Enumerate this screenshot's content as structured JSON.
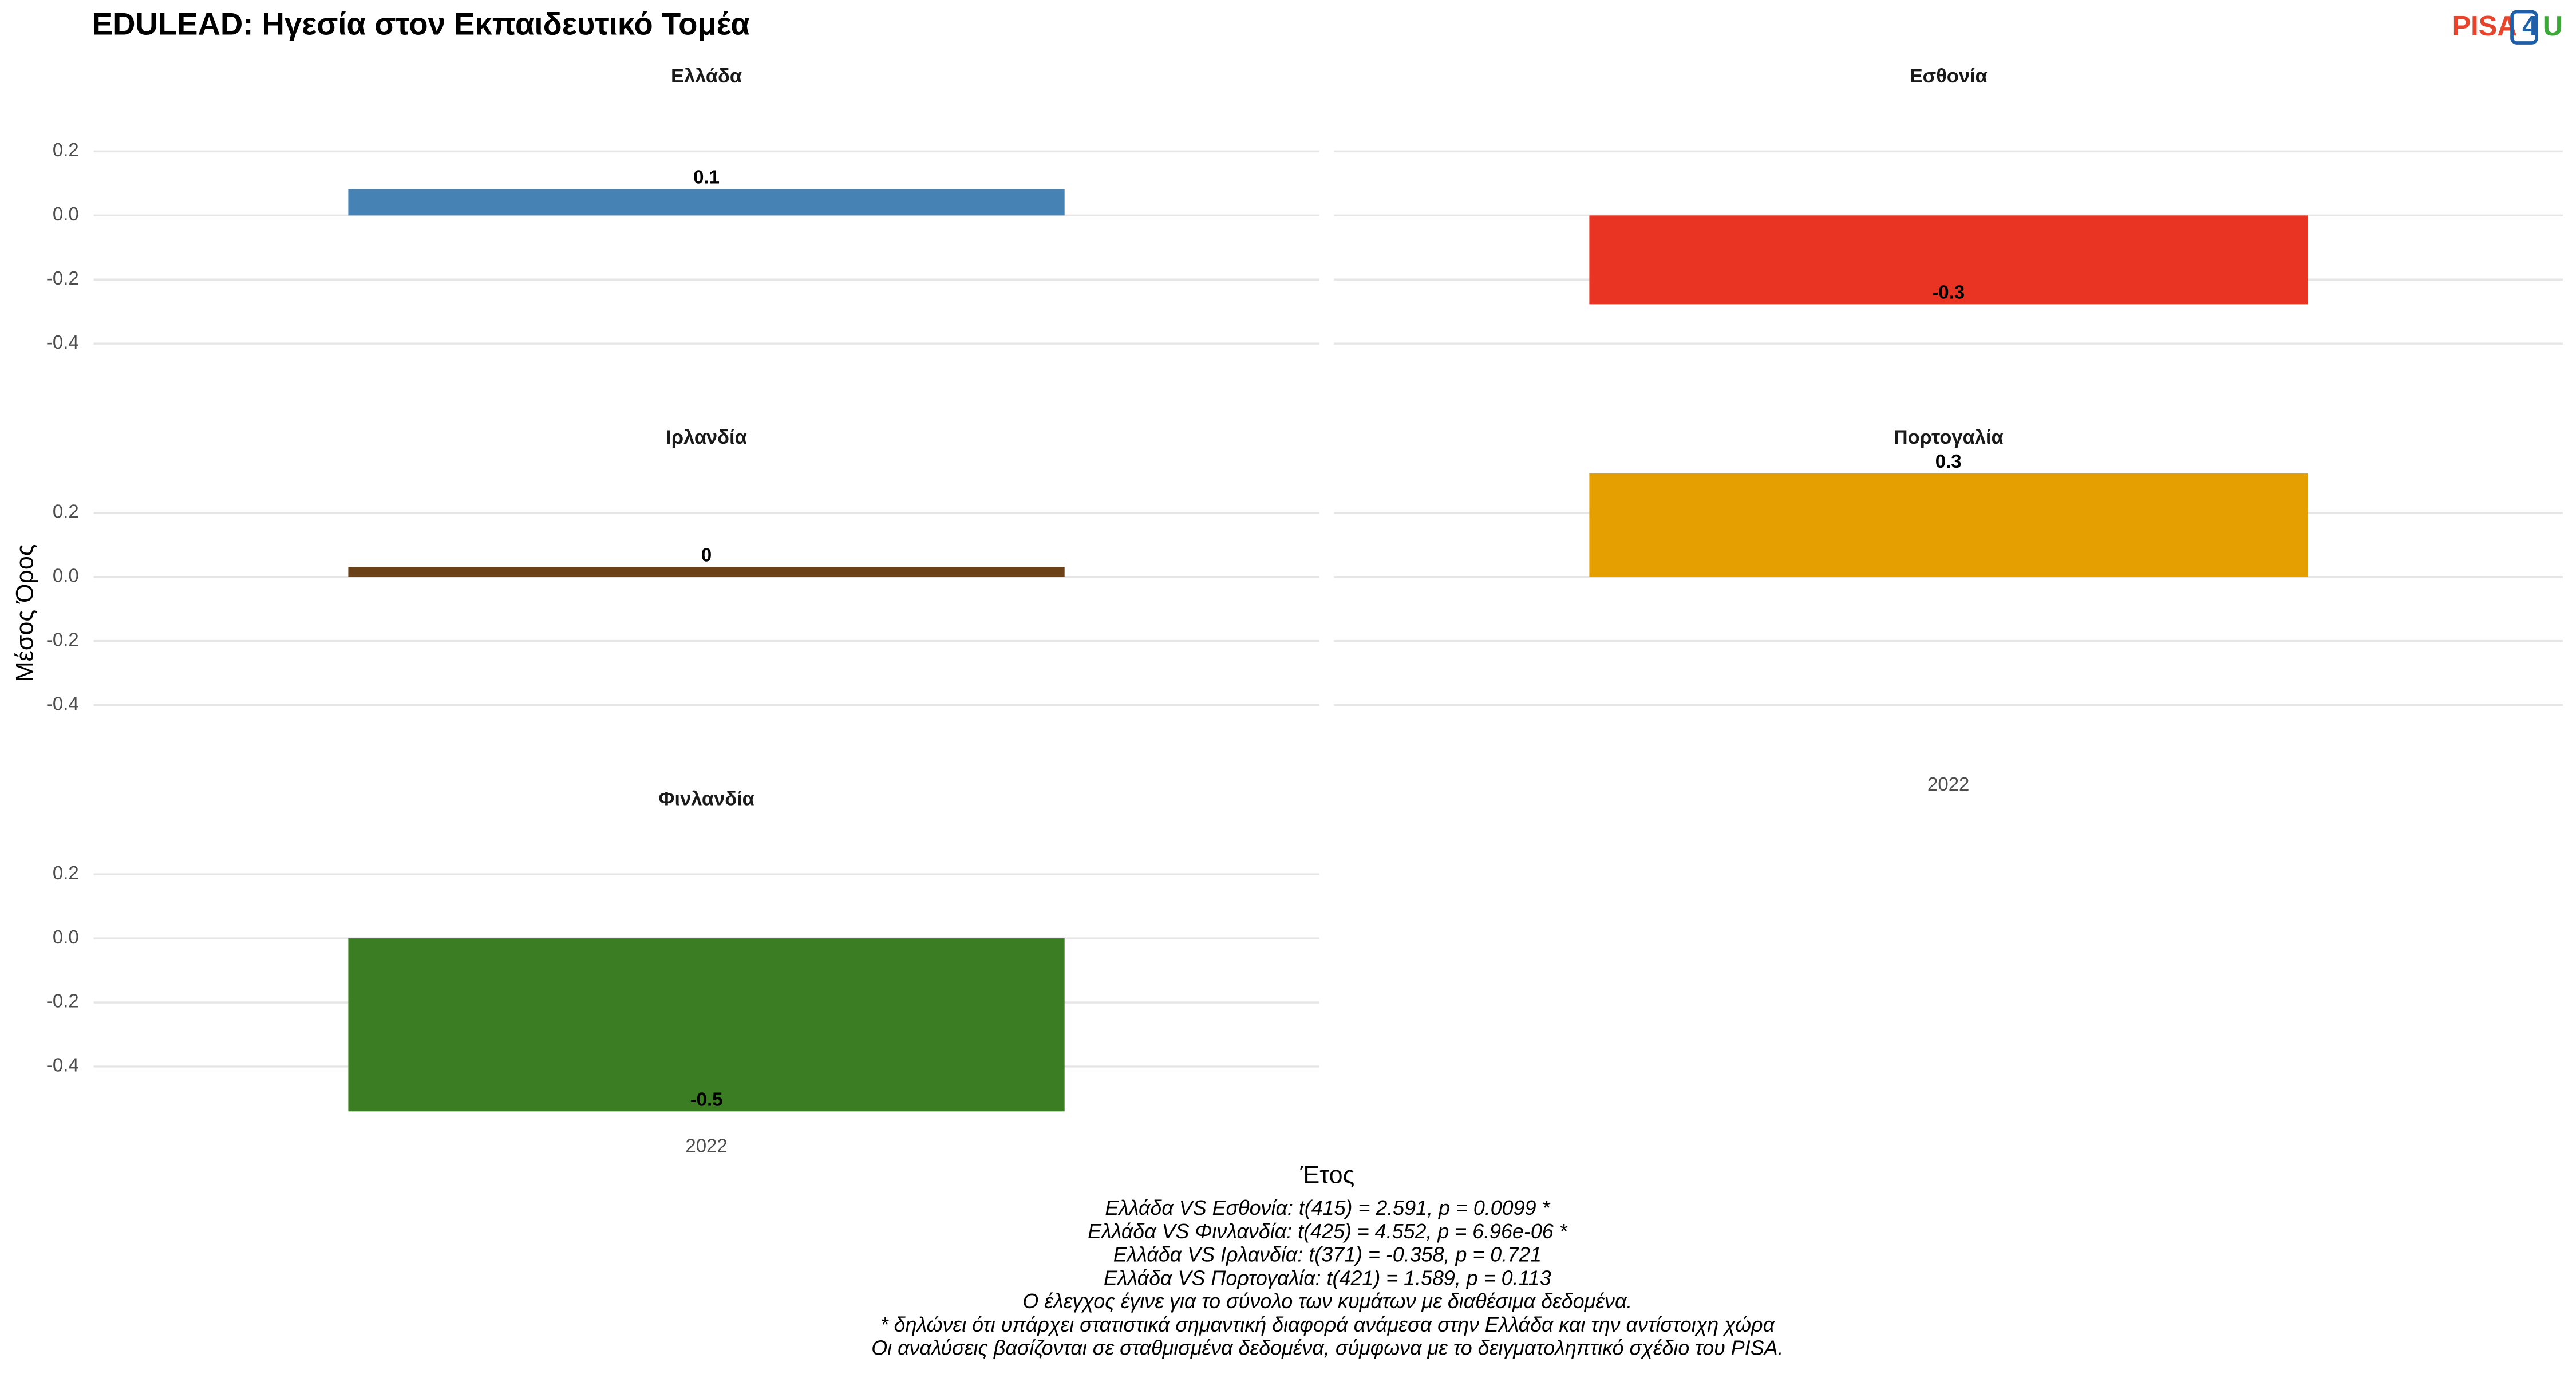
{
  "title": "EDULEAD: Ηγεσία στον Εκπαιδευτικό Τομέα",
  "logo": {
    "parts": [
      "PISA",
      "4",
      "U"
    ],
    "colors": [
      "#e8432b",
      "#1f5fa8",
      "#3aa935"
    ]
  },
  "y_label": "Μέσος Όρος",
  "x_label": "Έτος",
  "notes": [
    "Ελλάδα VS Εσθονία: t(415) = 2.591, p = 0.0099 *",
    "Ελλάδα VS Φινλανδία: t(425) = 4.552, p = 6.96e-06 *",
    "Ελλάδα VS Ιρλανδία: t(371) = -0.358, p = 0.721",
    "Ελλάδα VS Πορτογαλία: t(421) = 1.589, p = 0.113",
    "Ο έλεγχος έγινε για το σύνολο των κυμάτων με διαθέσιμα δεδομένα.",
    "* δηλώνει ότι υπάρχει στατιστικά σημαντική διαφορά ανάμεσα στην Ελλάδα και την αντίστοιχη χώρα",
    "Οι αναλύσεις βασίζονται σε σταθμισμένα δεδομένα, σύμφωνα με το δειγματοληπτικό σχέδιο του PISA."
  ],
  "chart_data": [
    {
      "type": "bar",
      "title": "Ελλάδα",
      "categories": [
        "2022"
      ],
      "values": [
        0.082
      ],
      "value_labels": [
        "0.1"
      ],
      "color": "#4682b4",
      "ylim": [
        -0.59,
        0.36
      ],
      "yticks": [
        -0.4,
        -0.2,
        {
          "value": 0,
          "label": "0.0"
        },
        0.2
      ],
      "grid": true
    },
    {
      "type": "bar",
      "title": "Εσθονία",
      "categories": [
        "2022"
      ],
      "values": [
        -0.277
      ],
      "value_labels": [
        "-0.3"
      ],
      "color": "#e93424",
      "ylim": [
        -0.59,
        0.36
      ],
      "yticks": [
        -0.4,
        -0.2,
        {
          "value": 0,
          "label": "0.0"
        },
        0.2
      ],
      "grid": true
    },
    {
      "type": "bar",
      "title": "Ιρλανδία",
      "categories": [
        "2022"
      ],
      "values": [
        0.031
      ],
      "value_labels": [
        "0"
      ],
      "color": "#6b4118",
      "ylim": [
        -0.59,
        0.36
      ],
      "yticks": [
        -0.4,
        -0.2,
        {
          "value": 0,
          "label": "0.0"
        },
        0.2
      ],
      "grid": true
    },
    {
      "type": "bar",
      "title": "Πορτογαλία",
      "categories": [
        "2022"
      ],
      "values": [
        0.323
      ],
      "value_labels": [
        "0.3"
      ],
      "color": "#e69f00",
      "ylim": [
        -0.59,
        0.36
      ],
      "yticks": [
        -0.4,
        -0.2,
        {
          "value": 0,
          "label": "0.0"
        },
        0.2
      ],
      "grid": true
    },
    {
      "type": "bar",
      "title": "Φινλανδία",
      "categories": [
        "2022"
      ],
      "values": [
        -0.54
      ],
      "value_labels": [
        "-0.5"
      ],
      "color": "#3a7d22",
      "ylim": [
        -0.59,
        0.36
      ],
      "yticks": [
        -0.4,
        -0.2,
        {
          "value": 0,
          "label": "0.0"
        },
        0.2
      ],
      "grid": true
    }
  ]
}
